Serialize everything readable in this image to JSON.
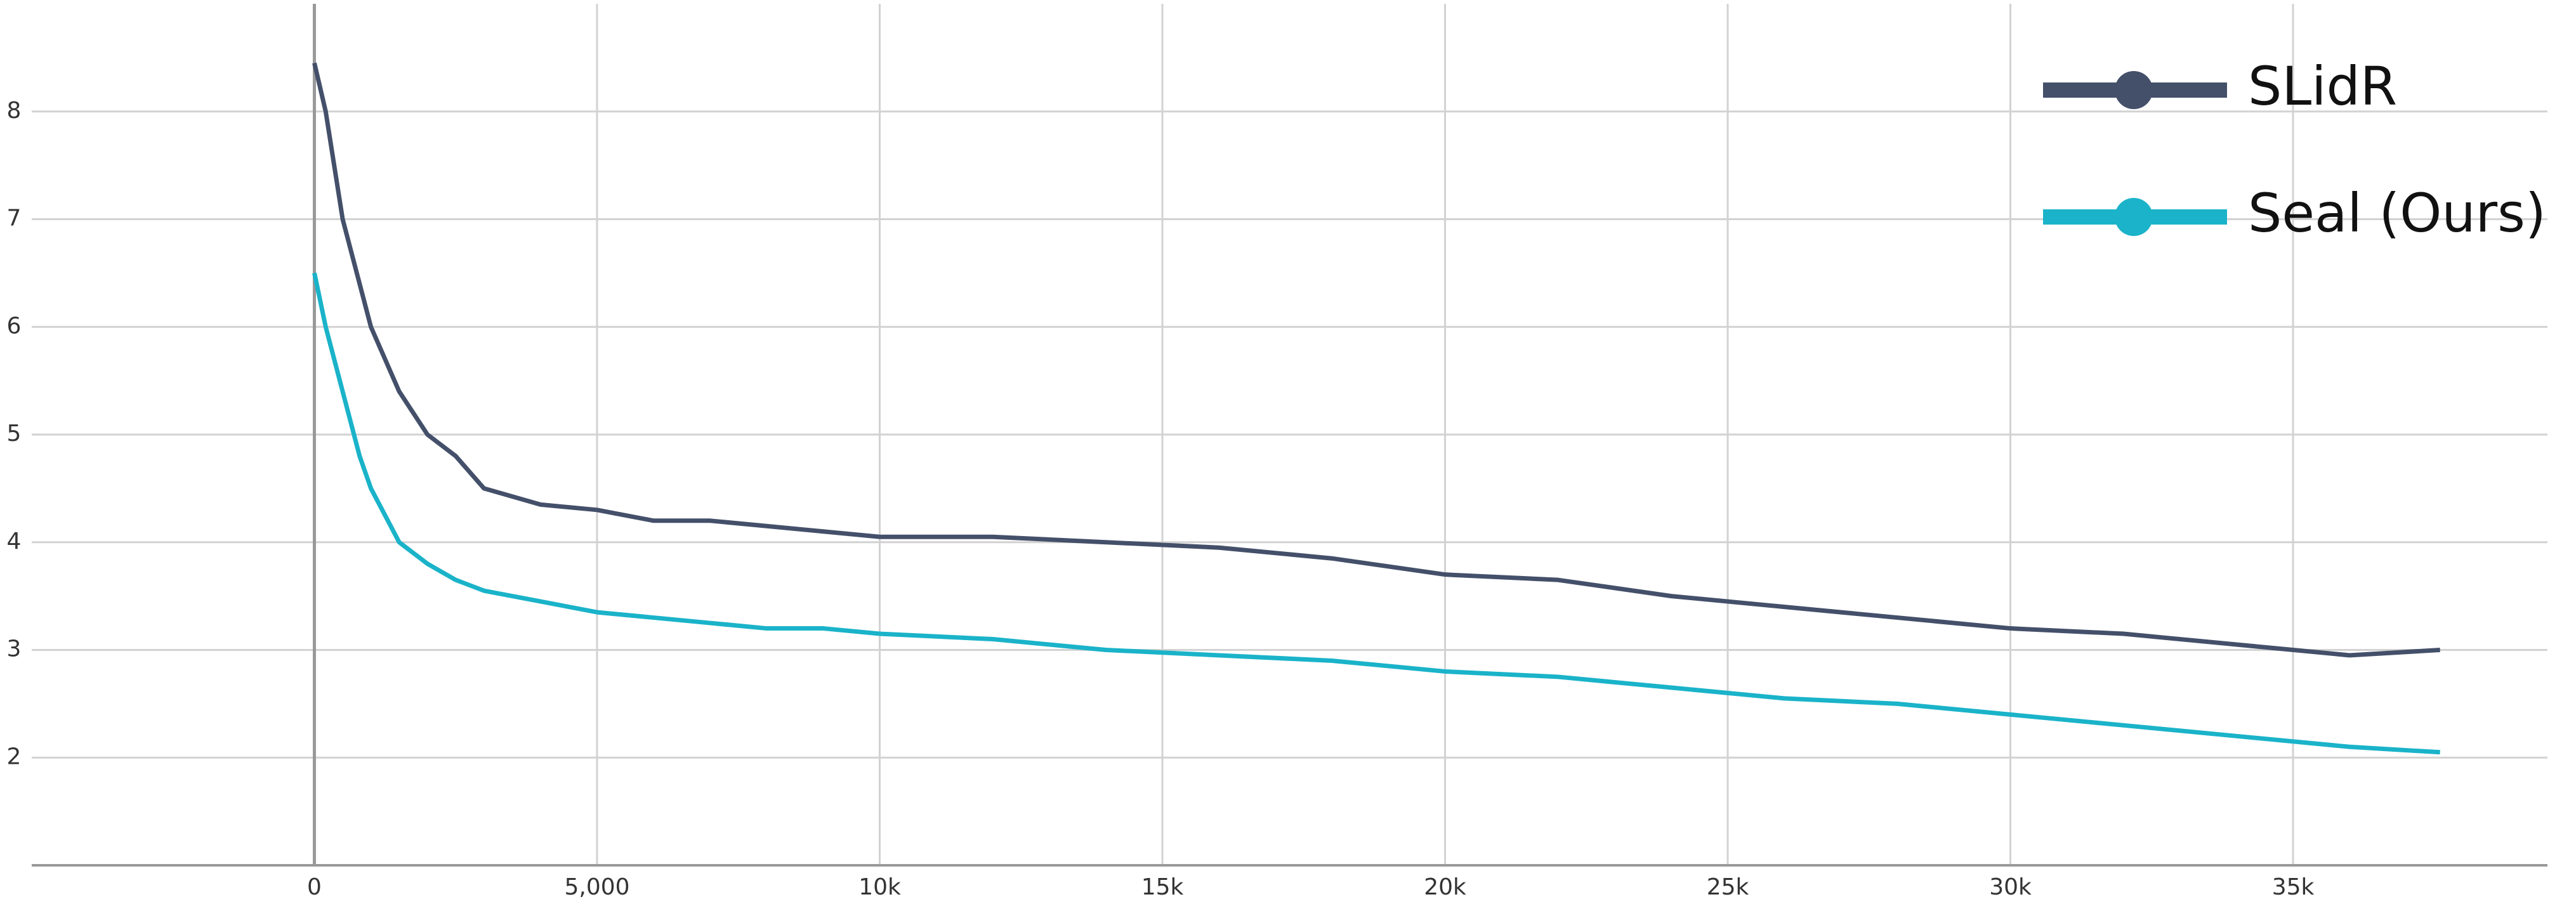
{
  "chart_data": {
    "type": "line",
    "x": [
      0,
      200,
      500,
      800,
      1000,
      1500,
      2000,
      2500,
      3000,
      4000,
      5000,
      6000,
      7000,
      8000,
      9000,
      10000,
      12000,
      14000,
      16000,
      18000,
      20000,
      22000,
      24000,
      26000,
      28000,
      30000,
      32000,
      34000,
      36000,
      37600
    ],
    "series": [
      {
        "name": "SLidR",
        "color": "#44506a",
        "values": [
          8.45,
          8.0,
          7.0,
          6.4,
          6.0,
          5.4,
          5.0,
          4.8,
          4.5,
          4.35,
          4.3,
          4.2,
          4.2,
          4.15,
          4.1,
          4.05,
          4.05,
          4.0,
          3.95,
          3.85,
          3.7,
          3.65,
          3.5,
          3.4,
          3.3,
          3.2,
          3.15,
          3.05,
          2.95,
          3.0
        ]
      },
      {
        "name": "Seal (Ours)",
        "color": "#1ab3c9",
        "values": [
          6.5,
          6.0,
          5.4,
          4.8,
          4.5,
          4.0,
          3.8,
          3.65,
          3.55,
          3.45,
          3.35,
          3.3,
          3.25,
          3.2,
          3.2,
          3.15,
          3.1,
          3.0,
          2.95,
          2.9,
          2.8,
          2.75,
          2.65,
          2.55,
          2.5,
          2.4,
          2.3,
          2.2,
          2.1,
          2.05
        ]
      }
    ],
    "xlim": [
      -5000,
      39500
    ],
    "xticks": [
      0,
      {
        "value": 5000,
        "label": "5,000"
      },
      {
        "value": 10000,
        "label": "10k"
      },
      {
        "value": 15000,
        "label": "15k"
      },
      {
        "value": 20000,
        "label": "20k"
      },
      {
        "value": 25000,
        "label": "25k"
      },
      {
        "value": 30000,
        "label": "30k"
      },
      {
        "value": 35000,
        "label": "35k"
      }
    ],
    "ylim": [
      1,
      9
    ],
    "yticks": [
      2,
      3,
      4,
      5,
      6,
      7,
      8
    ],
    "grid": true,
    "legend": "upper right"
  }
}
